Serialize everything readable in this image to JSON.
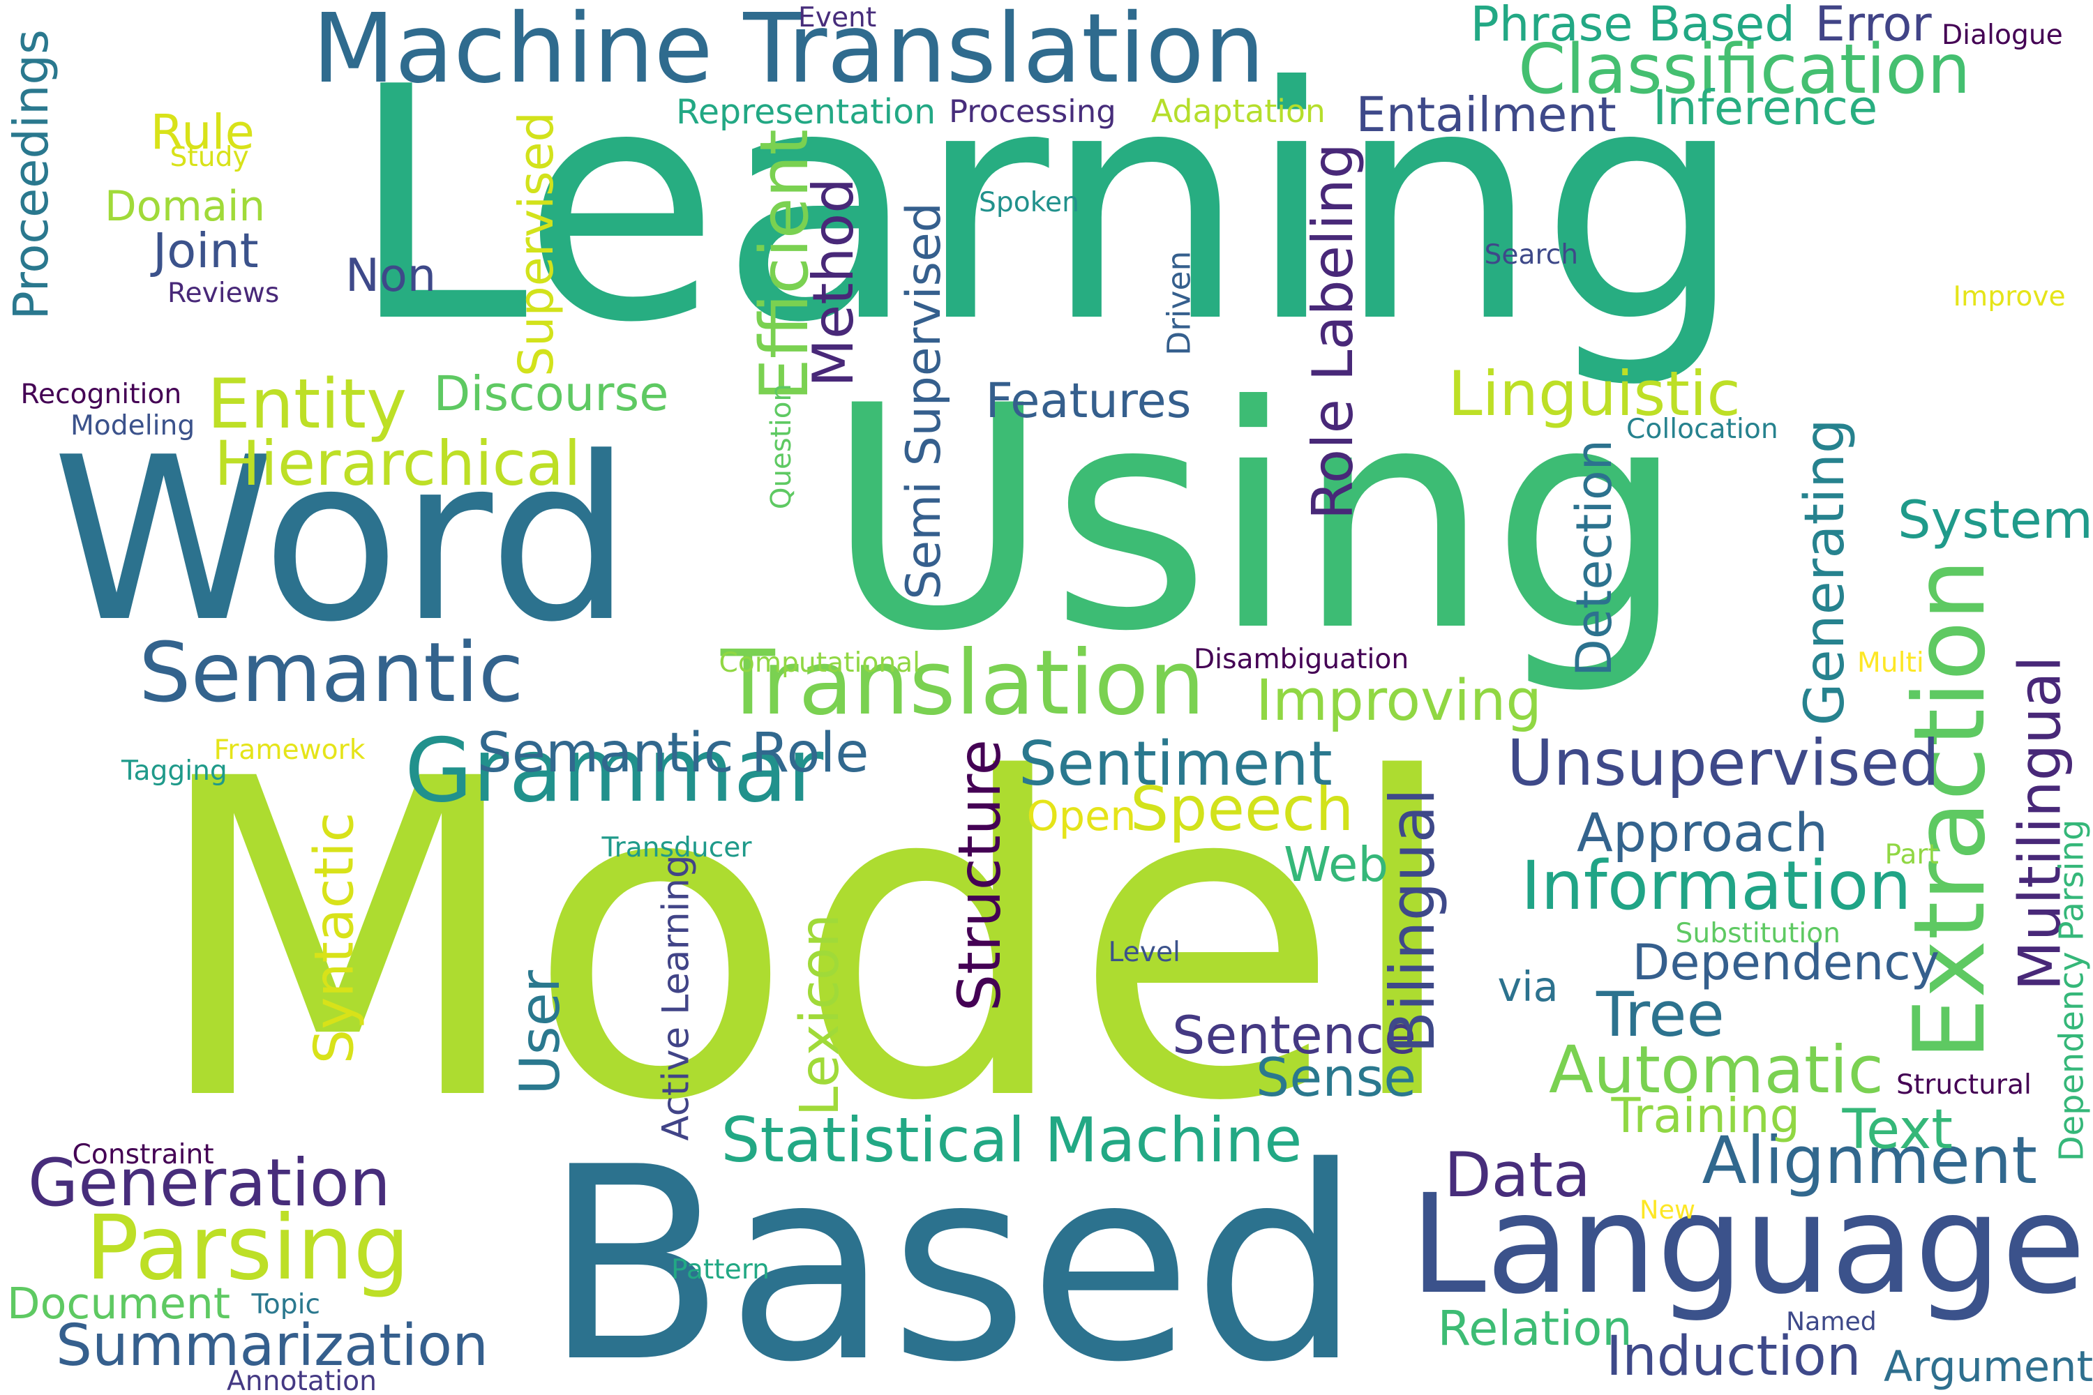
{
  "words": [
    {
      "text": "Learning",
      "color": "#27ad81"
    },
    {
      "text": "Model",
      "color": "#addc30"
    },
    {
      "text": "Using",
      "color": "#3dbc74"
    },
    {
      "text": "Word",
      "color": "#2c728e"
    },
    {
      "text": "Based",
      "color": "#2c728e"
    },
    {
      "text": "Machine Translation",
      "color": "#2f6b8e"
    },
    {
      "text": "Language",
      "color": "#3b528b"
    },
    {
      "text": "Translation",
      "color": "#7ad151"
    },
    {
      "text": "Semantic",
      "color": "#33638d"
    },
    {
      "text": "Grammar",
      "color": "#21918c"
    },
    {
      "text": "Statistical Machine",
      "color": "#22a884"
    },
    {
      "text": "Parsing",
      "color": "#bddf26"
    },
    {
      "text": "Extraction",
      "color": "#5ec962"
    },
    {
      "text": "Classification",
      "color": "#44bf70"
    },
    {
      "text": "Information",
      "color": "#20a486"
    },
    {
      "text": "Generation",
      "color": "#472d7b"
    },
    {
      "text": "Unsupervised",
      "color": "#3e4989"
    },
    {
      "text": "Alignment",
      "color": "#31688e"
    },
    {
      "text": "Speech",
      "color": "#d2e21b"
    },
    {
      "text": "Semantic Role",
      "color": "#31688e"
    },
    {
      "text": "Sentiment",
      "color": "#2a788e"
    },
    {
      "text": "Automatic",
      "color": "#7ad151"
    },
    {
      "text": "Summarization",
      "color": "#355f8d"
    },
    {
      "text": "Hierarchical",
      "color": "#bddf26"
    },
    {
      "text": "Entity",
      "color": "#bddf26"
    },
    {
      "text": "Improving",
      "color": "#90d743"
    },
    {
      "text": "Dependency",
      "color": "#355f8d"
    },
    {
      "text": "Linguistic",
      "color": "#bddf26"
    },
    {
      "text": "Approach",
      "color": "#33638d"
    },
    {
      "text": "Data",
      "color": "#472d7b"
    },
    {
      "text": "Tree",
      "color": "#2c728e"
    },
    {
      "text": "Sentence",
      "color": "#443983"
    },
    {
      "text": "Induction",
      "color": "#3e4989"
    },
    {
      "text": "Features",
      "color": "#355f8d"
    },
    {
      "text": "Discourse",
      "color": "#5ec962"
    },
    {
      "text": "Document",
      "color": "#5ec962"
    },
    {
      "text": "System",
      "color": "#1f9a8a"
    },
    {
      "text": "Sense",
      "color": "#2a788e"
    },
    {
      "text": "Web",
      "color": "#35b779"
    },
    {
      "text": "Text",
      "color": "#35b779"
    },
    {
      "text": "Training",
      "color": "#90d743"
    },
    {
      "text": "Phrase Based",
      "color": "#22a884"
    },
    {
      "text": "Error",
      "color": "#414487"
    },
    {
      "text": "Entailment",
      "color": "#3e4989"
    },
    {
      "text": "Inference",
      "color": "#28ae80"
    },
    {
      "text": "Relation",
      "color": "#3dbc74"
    },
    {
      "text": "Argument",
      "color": "#2e6f8e"
    },
    {
      "text": "Rule",
      "color": "#d8e219"
    },
    {
      "text": "Domain",
      "color": "#a0da39"
    },
    {
      "text": "Joint",
      "color": "#3b528b"
    },
    {
      "text": "Non",
      "color": "#3e4989"
    },
    {
      "text": "via",
      "color": "#2c728e"
    },
    {
      "text": "Open",
      "color": "#e5e419"
    },
    {
      "text": "Semi Supervised",
      "color": "#355f8d"
    },
    {
      "text": "Method",
      "color": "#482878"
    },
    {
      "text": "Efficient",
      "color": "#7ad151"
    },
    {
      "text": "Supervised",
      "color": "#d2e21b"
    },
    {
      "text": "Role Labeling",
      "color": "#482878"
    },
    {
      "text": "Detection",
      "color": "#2c728e"
    },
    {
      "text": "Generating",
      "color": "#26828e"
    },
    {
      "text": "Multilingual",
      "color": "#482878"
    },
    {
      "text": "Structure",
      "color": "#440154"
    },
    {
      "text": "Bilingual",
      "color": "#3e4989"
    },
    {
      "text": "Lexicon",
      "color": "#a0da39"
    },
    {
      "text": "Syntactic",
      "color": "#d8e219"
    },
    {
      "text": "User",
      "color": "#2a788e"
    },
    {
      "text": "Active Learning",
      "color": "#414487"
    },
    {
      "text": "Proceedings",
      "color": "#2a788e"
    },
    {
      "text": "Dependency Parsing",
      "color": "#35b779"
    },
    {
      "text": "Question",
      "color": "#5ec962"
    },
    {
      "text": "Driven",
      "color": "#355f8d"
    },
    {
      "text": "Representation",
      "color": "#22a884"
    },
    {
      "text": "Processing",
      "color": "#472d7b"
    },
    {
      "text": "Adaptation",
      "color": "#b5de2b"
    },
    {
      "text": "Event",
      "color": "#472d7b"
    },
    {
      "text": "Dialogue",
      "color": "#440154"
    },
    {
      "text": "Study",
      "color": "#d8e219"
    },
    {
      "text": "Reviews",
      "color": "#482878"
    },
    {
      "text": "Recognition",
      "color": "#440154"
    },
    {
      "text": "Modeling",
      "color": "#3b528b"
    },
    {
      "text": "Spoken",
      "color": "#21918c"
    },
    {
      "text": "Search",
      "color": "#3e4989"
    },
    {
      "text": "Improve",
      "color": "#e5e419"
    },
    {
      "text": "Collocation",
      "color": "#26828e"
    },
    {
      "text": "Computational",
      "color": "#90d743"
    },
    {
      "text": "Disambiguation",
      "color": "#440154"
    },
    {
      "text": "Multi",
      "color": "#fde725"
    },
    {
      "text": "Framework",
      "color": "#e5e419"
    },
    {
      "text": "Tagging",
      "color": "#1f9a8a"
    },
    {
      "text": "Transducer",
      "color": "#1f9a8a"
    },
    {
      "text": "Level",
      "color": "#3b528b"
    },
    {
      "text": "Part",
      "color": "#90d743"
    },
    {
      "text": "Substitution",
      "color": "#5ec962"
    },
    {
      "text": "Structural",
      "color": "#440154"
    },
    {
      "text": "Constraint",
      "color": "#440154"
    },
    {
      "text": "New",
      "color": "#fde725"
    },
    {
      "text": "Topic",
      "color": "#2a788e"
    },
    {
      "text": "Annotation",
      "color": "#443983"
    },
    {
      "text": "Pattern",
      "color": "#22a884"
    },
    {
      "text": "Named",
      "color": "#3e4989"
    }
  ]
}
